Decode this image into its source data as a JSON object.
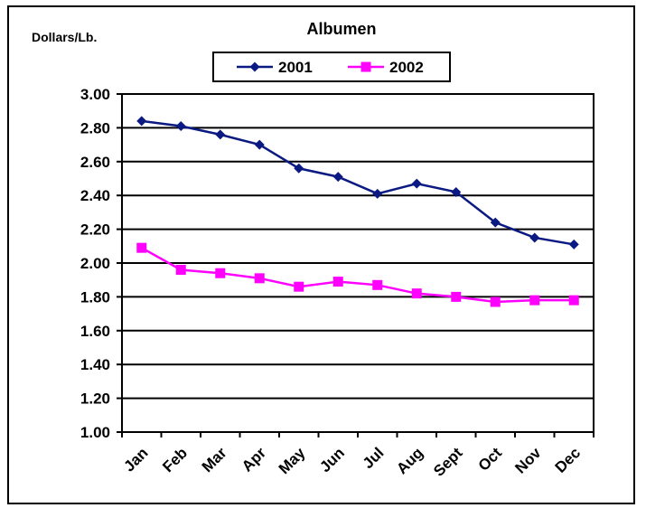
{
  "chart_data": {
    "type": "line",
    "title": "Albumen",
    "ylabel": "Dollars/Lb.",
    "xlabel": "",
    "categories": [
      "Jan",
      "Feb",
      "Mar",
      "Apr",
      "May",
      "Jun",
      "Jul",
      "Aug",
      "Sept",
      "Oct",
      "Nov",
      "Dec"
    ],
    "ylim": [
      1.0,
      3.0
    ],
    "yticks": [
      "1.00",
      "1.20",
      "1.40",
      "1.60",
      "1.80",
      "2.00",
      "2.20",
      "2.40",
      "2.60",
      "2.80",
      "3.00"
    ],
    "grid": true,
    "legend_position": "top",
    "series": [
      {
        "name": "2001",
        "color": "#0b1a82",
        "marker": "diamond",
        "values": [
          2.84,
          2.81,
          2.76,
          2.7,
          2.56,
          2.51,
          2.41,
          2.47,
          2.42,
          2.24,
          2.15,
          2.11
        ]
      },
      {
        "name": "2002",
        "color": "#ff00ff",
        "marker": "square",
        "values": [
          2.09,
          1.96,
          1.94,
          1.91,
          1.86,
          1.89,
          1.87,
          1.82,
          1.8,
          1.77,
          1.78,
          1.78
        ]
      }
    ]
  }
}
